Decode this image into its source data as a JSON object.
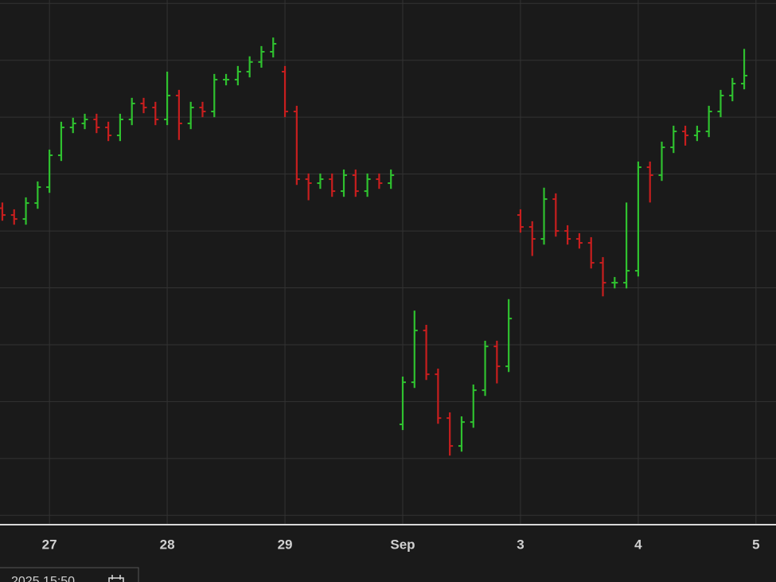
{
  "chart_data": {
    "type": "ohlc",
    "x": [
      -0.4,
      -0.3,
      -0.2,
      -0.1,
      0.0,
      0.1,
      0.2,
      0.3,
      0.4,
      0.5,
      0.6,
      0.7,
      0.8,
      0.9,
      1.0,
      1.1,
      1.2,
      1.3,
      1.4,
      1.5,
      1.6,
      1.7,
      1.8,
      1.9,
      2.0,
      2.1,
      2.2,
      2.3,
      2.4,
      2.5,
      2.6,
      2.7,
      2.8,
      2.9,
      3.0,
      3.1,
      3.2,
      3.3,
      3.4,
      3.5,
      3.6,
      3.7,
      3.8,
      3.9,
      4.0,
      4.1,
      4.2,
      4.3,
      4.4,
      4.5,
      4.6,
      4.7,
      4.8,
      4.9,
      5.0,
      5.1,
      5.2,
      5.3,
      5.4,
      5.5,
      5.6,
      5.7,
      5.8,
      5.9
    ],
    "open": [
      5.4,
      5.28,
      5.21,
      5.49,
      5.77,
      6.33,
      6.82,
      6.89,
      6.96,
      6.82,
      6.68,
      6.96,
      7.24,
      7.17,
      6.96,
      7.38,
      6.89,
      7.17,
      7.1,
      7.66,
      7.66,
      7.8,
      7.97,
      8.15,
      7.8,
      7.1,
      5.91,
      5.84,
      5.91,
      5.7,
      5.98,
      5.7,
      5.91,
      5.84,
      1.6,
      2.34,
      3.25,
      2.48,
      1.71,
      1.22,
      1.64,
      2.2,
      2.97,
      2.62,
      5.28,
      5.07,
      4.86,
      5.56,
      5.0,
      4.86,
      4.79,
      4.44,
      4.09,
      4.09,
      4.3,
      6.12,
      5.98,
      6.47,
      6.75,
      6.68,
      6.75,
      7.1,
      7.38,
      7.59
    ],
    "high": [
      5.5,
      5.38,
      5.59,
      5.87,
      6.43,
      6.92,
      6.99,
      7.06,
      7.06,
      6.92,
      7.06,
      7.34,
      7.34,
      7.27,
      7.8,
      7.48,
      7.27,
      7.27,
      7.76,
      7.76,
      7.9,
      8.07,
      8.25,
      8.4,
      7.9,
      7.2,
      6.01,
      6.01,
      6.01,
      6.08,
      6.08,
      6.01,
      6.01,
      6.08,
      2.44,
      3.6,
      3.35,
      2.58,
      1.81,
      1.74,
      2.3,
      3.07,
      3.07,
      3.8,
      5.38,
      5.17,
      5.76,
      5.66,
      5.1,
      4.96,
      4.89,
      4.54,
      4.19,
      5.5,
      6.22,
      6.22,
      6.57,
      6.85,
      6.85,
      6.85,
      7.2,
      7.48,
      7.69,
      8.2
    ],
    "low": [
      5.18,
      5.11,
      5.11,
      5.39,
      5.67,
      6.23,
      6.72,
      6.79,
      6.72,
      6.58,
      6.58,
      6.86,
      7.07,
      6.86,
      6.86,
      6.6,
      6.79,
      7.0,
      7.0,
      7.56,
      7.56,
      7.7,
      7.87,
      8.05,
      7.0,
      5.81,
      5.54,
      5.74,
      5.6,
      5.6,
      5.6,
      5.6,
      5.74,
      5.74,
      1.5,
      2.24,
      2.38,
      1.61,
      1.05,
      1.12,
      1.54,
      2.1,
      2.32,
      2.52,
      4.97,
      4.56,
      4.76,
      4.9,
      4.76,
      4.69,
      4.34,
      3.85,
      3.99,
      3.99,
      4.2,
      5.5,
      5.88,
      6.37,
      6.5,
      6.58,
      6.65,
      7.0,
      7.28,
      7.49
    ],
    "close": [
      5.28,
      5.21,
      5.49,
      5.77,
      6.33,
      6.82,
      6.89,
      6.96,
      6.82,
      6.68,
      6.96,
      7.24,
      7.17,
      6.96,
      7.38,
      6.89,
      7.17,
      7.1,
      7.66,
      7.66,
      7.8,
      7.97,
      8.15,
      8.29,
      7.1,
      5.91,
      5.84,
      5.91,
      5.7,
      5.98,
      5.7,
      5.91,
      5.84,
      5.98,
      2.34,
      3.25,
      2.48,
      1.71,
      1.22,
      1.64,
      2.2,
      2.97,
      2.62,
      3.46,
      5.07,
      4.86,
      5.56,
      5.0,
      4.86,
      4.79,
      4.44,
      4.09,
      4.09,
      4.3,
      6.12,
      5.98,
      6.47,
      6.75,
      6.68,
      6.75,
      7.1,
      7.38,
      7.59,
      7.73
    ],
    "up_color": "#2fc12f",
    "down_color": "#c81e1e",
    "xlim": [
      -0.42,
      6.17
    ],
    "ylim": [
      -0.15,
      9.06
    ],
    "xticks": [
      {
        "value": 0,
        "label": "27"
      },
      {
        "value": 1,
        "label": "28"
      },
      {
        "value": 2,
        "label": "29"
      },
      {
        "value": 3,
        "label": "Sep"
      },
      {
        "value": 4,
        "label": "3"
      },
      {
        "value": 5,
        "label": "4"
      },
      {
        "value": 6,
        "label": "5"
      }
    ],
    "yticks": [
      0,
      1,
      2,
      3,
      4,
      5,
      6,
      7,
      8,
      9
    ],
    "grid": true,
    "date_box": "2025 15:50"
  }
}
